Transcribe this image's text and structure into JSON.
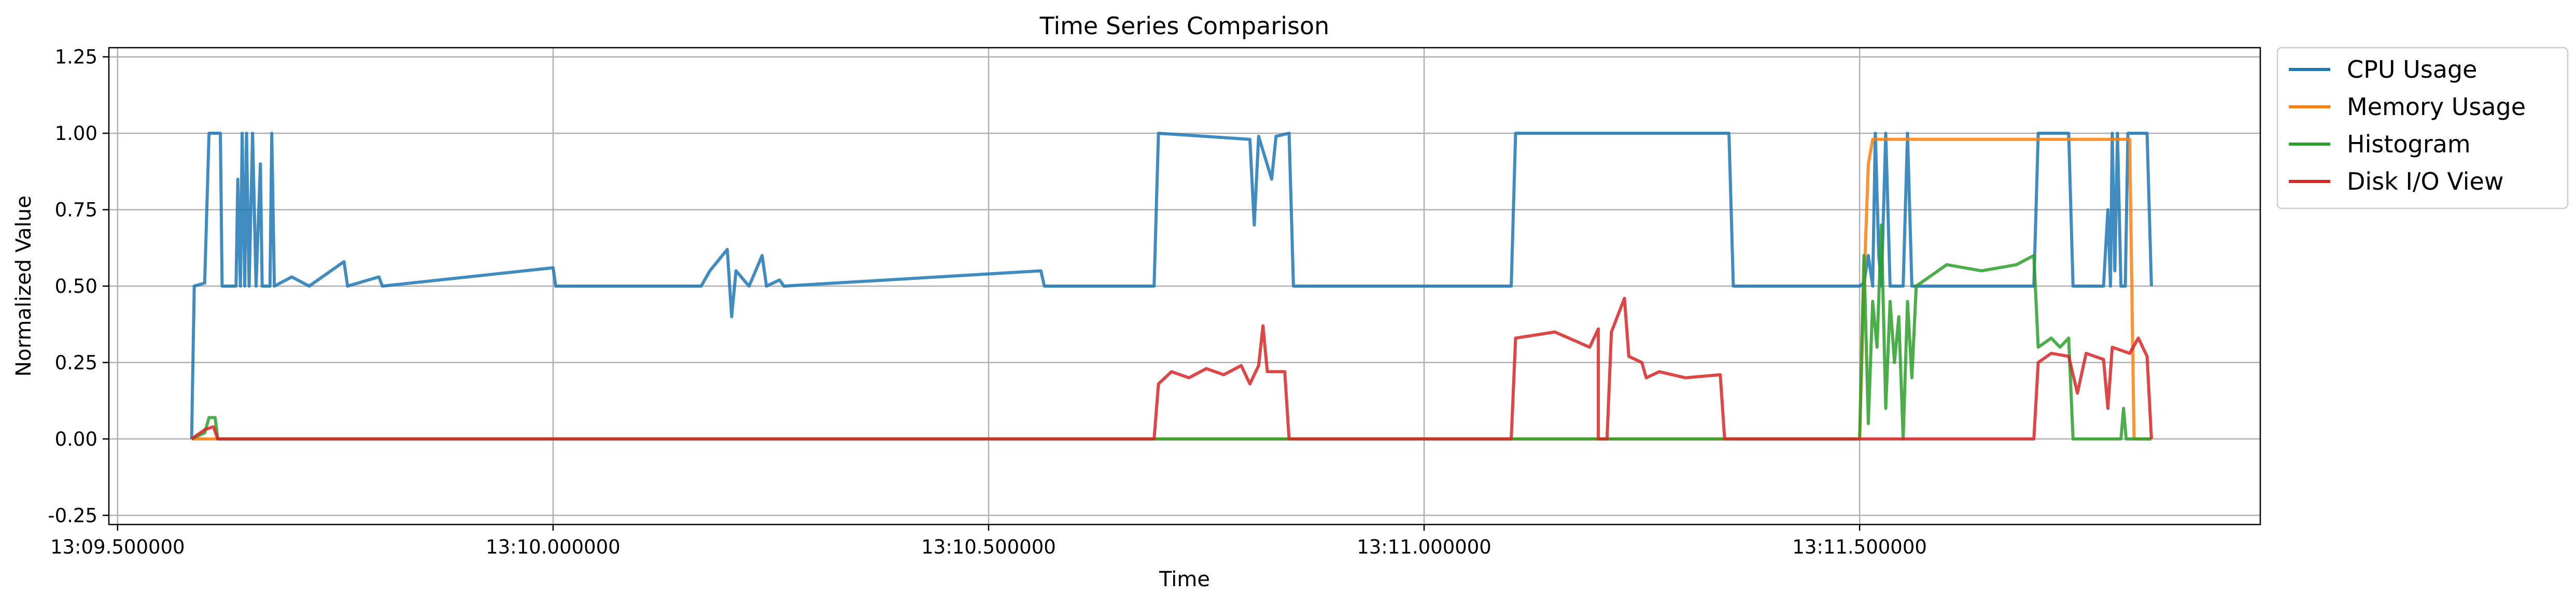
{
  "chart_data": {
    "type": "line",
    "title": "Time Series Comparison",
    "xlabel": "Time",
    "ylabel": "Normalized Value",
    "xlim": [
      "13:09.500000",
      "13:12.000000"
    ],
    "xlim_seconds": [
      9.49,
      11.96
    ],
    "ylim": [
      -0.28,
      1.28
    ],
    "x_ticks": [
      "13:09.500000",
      "13:10.000000",
      "13:10.500000",
      "13:11.000000",
      "13:11.500000"
    ],
    "x_tick_seconds": [
      9.5,
      10.0,
      10.5,
      11.0,
      11.5
    ],
    "y_ticks": [
      -0.25,
      0.0,
      0.25,
      0.5,
      0.75,
      1.0,
      1.25
    ],
    "y_tick_labels": [
      "-0.25",
      "0.00",
      "0.25",
      "0.50",
      "0.75",
      "1.00",
      "1.25"
    ],
    "grid": true,
    "legend_position": "outside-top-right",
    "series": [
      {
        "name": "CPU Usage",
        "color": "#1f77b4",
        "points": [
          [
            9.585,
            0.0
          ],
          [
            9.588,
            0.5
          ],
          [
            9.6,
            0.51
          ],
          [
            9.605,
            1.0
          ],
          [
            9.618,
            1.0
          ],
          [
            9.62,
            0.5
          ],
          [
            9.636,
            0.5
          ],
          [
            9.638,
            0.85
          ],
          [
            9.641,
            0.5
          ],
          [
            9.643,
            1.0
          ],
          [
            9.646,
            0.5
          ],
          [
            9.648,
            1.0
          ],
          [
            9.651,
            0.5
          ],
          [
            9.655,
            1.0
          ],
          [
            9.659,
            0.5
          ],
          [
            9.664,
            0.9
          ],
          [
            9.666,
            0.5
          ],
          [
            9.675,
            0.5
          ],
          [
            9.677,
            1.0
          ],
          [
            9.68,
            0.5
          ],
          [
            9.7,
            0.53
          ],
          [
            9.72,
            0.5
          ],
          [
            9.76,
            0.58
          ],
          [
            9.764,
            0.5
          ],
          [
            9.8,
            0.53
          ],
          [
            9.804,
            0.5
          ],
          [
            10.0,
            0.56
          ],
          [
            10.003,
            0.5
          ],
          [
            10.17,
            0.5
          ],
          [
            10.18,
            0.55
          ],
          [
            10.2,
            0.62
          ],
          [
            10.205,
            0.4
          ],
          [
            10.21,
            0.55
          ],
          [
            10.225,
            0.5
          ],
          [
            10.24,
            0.6
          ],
          [
            10.245,
            0.5
          ],
          [
            10.26,
            0.52
          ],
          [
            10.265,
            0.5
          ],
          [
            10.56,
            0.55
          ],
          [
            10.564,
            0.5
          ],
          [
            10.69,
            0.5
          ],
          [
            10.695,
            1.0
          ],
          [
            10.8,
            0.98
          ],
          [
            10.805,
            0.7
          ],
          [
            10.81,
            0.99
          ],
          [
            10.825,
            0.85
          ],
          [
            10.83,
            0.99
          ],
          [
            10.845,
            1.0
          ],
          [
            10.85,
            0.5
          ],
          [
            11.1,
            0.5
          ],
          [
            11.105,
            1.0
          ],
          [
            11.35,
            1.0
          ],
          [
            11.355,
            0.5
          ],
          [
            11.5,
            0.5
          ],
          [
            11.505,
            0.51
          ],
          [
            11.51,
            0.6
          ],
          [
            11.515,
            0.5
          ],
          [
            11.518,
            1.0
          ],
          [
            11.522,
            0.6
          ],
          [
            11.525,
            0.5
          ],
          [
            11.53,
            1.0
          ],
          [
            11.535,
            0.5
          ],
          [
            11.55,
            0.5
          ],
          [
            11.555,
            1.0
          ],
          [
            11.56,
            0.5
          ],
          [
            11.7,
            0.5
          ],
          [
            11.705,
            1.0
          ],
          [
            11.74,
            1.0
          ],
          [
            11.745,
            0.5
          ],
          [
            11.78,
            0.5
          ],
          [
            11.785,
            0.75
          ],
          [
            11.788,
            0.5
          ],
          [
            11.79,
            1.0
          ],
          [
            11.793,
            0.55
          ],
          [
            11.796,
            1.0
          ],
          [
            11.8,
            0.5
          ],
          [
            11.805,
            0.5
          ],
          [
            11.808,
            1.0
          ],
          [
            11.83,
            1.0
          ],
          [
            11.835,
            0.5
          ]
        ]
      },
      {
        "name": "Memory Usage",
        "color": "#ff7f0e",
        "points": [
          [
            9.585,
            0.0
          ],
          [
            11.5,
            0.0
          ],
          [
            11.505,
            0.5
          ],
          [
            11.51,
            0.9
          ],
          [
            11.515,
            0.98
          ],
          [
            11.81,
            0.98
          ],
          [
            11.815,
            0.0
          ],
          [
            11.835,
            0.0
          ]
        ]
      },
      {
        "name": "Histogram",
        "color": "#2ca02c",
        "points": [
          [
            9.585,
            0.0
          ],
          [
            9.6,
            0.02
          ],
          [
            9.605,
            0.07
          ],
          [
            9.612,
            0.07
          ],
          [
            9.615,
            0.0
          ],
          [
            11.5,
            0.0
          ],
          [
            11.505,
            0.6
          ],
          [
            11.51,
            0.05
          ],
          [
            11.515,
            0.45
          ],
          [
            11.52,
            0.3
          ],
          [
            11.525,
            0.7
          ],
          [
            11.53,
            0.1
          ],
          [
            11.535,
            0.45
          ],
          [
            11.54,
            0.25
          ],
          [
            11.545,
            0.4
          ],
          [
            11.55,
            0.0
          ],
          [
            11.555,
            0.45
          ],
          [
            11.56,
            0.2
          ],
          [
            11.565,
            0.5
          ],
          [
            11.6,
            0.57
          ],
          [
            11.64,
            0.55
          ],
          [
            11.68,
            0.57
          ],
          [
            11.7,
            0.6
          ],
          [
            11.705,
            0.3
          ],
          [
            11.72,
            0.33
          ],
          [
            11.73,
            0.3
          ],
          [
            11.74,
            0.33
          ],
          [
            11.745,
            0.0
          ],
          [
            11.8,
            0.0
          ],
          [
            11.803,
            0.1
          ],
          [
            11.806,
            0.0
          ],
          [
            11.835,
            0.0
          ]
        ]
      },
      {
        "name": "Disk I/O View",
        "color": "#d62728",
        "points": [
          [
            9.585,
            0.0
          ],
          [
            9.6,
            0.03
          ],
          [
            9.61,
            0.04
          ],
          [
            9.615,
            0.0
          ],
          [
            10.69,
            0.0
          ],
          [
            10.695,
            0.18
          ],
          [
            10.71,
            0.22
          ],
          [
            10.73,
            0.2
          ],
          [
            10.75,
            0.23
          ],
          [
            10.77,
            0.21
          ],
          [
            10.79,
            0.24
          ],
          [
            10.8,
            0.18
          ],
          [
            10.81,
            0.24
          ],
          [
            10.815,
            0.37
          ],
          [
            10.82,
            0.22
          ],
          [
            10.84,
            0.22
          ],
          [
            10.845,
            0.0
          ],
          [
            11.1,
            0.0
          ],
          [
            11.105,
            0.33
          ],
          [
            11.15,
            0.35
          ],
          [
            11.19,
            0.3
          ],
          [
            11.2,
            0.36
          ],
          [
            11.2,
            0.0
          ],
          [
            11.21,
            0.0
          ],
          [
            11.215,
            0.35
          ],
          [
            11.23,
            0.46
          ],
          [
            11.235,
            0.27
          ],
          [
            11.25,
            0.25
          ],
          [
            11.255,
            0.2
          ],
          [
            11.27,
            0.22
          ],
          [
            11.3,
            0.2
          ],
          [
            11.34,
            0.21
          ],
          [
            11.345,
            0.0
          ],
          [
            11.7,
            0.0
          ],
          [
            11.705,
            0.25
          ],
          [
            11.72,
            0.28
          ],
          [
            11.74,
            0.27
          ],
          [
            11.75,
            0.15
          ],
          [
            11.76,
            0.28
          ],
          [
            11.78,
            0.26
          ],
          [
            11.785,
            0.1
          ],
          [
            11.79,
            0.3
          ],
          [
            11.81,
            0.28
          ],
          [
            11.82,
            0.33
          ],
          [
            11.83,
            0.27
          ],
          [
            11.835,
            0.0
          ]
        ]
      }
    ]
  }
}
